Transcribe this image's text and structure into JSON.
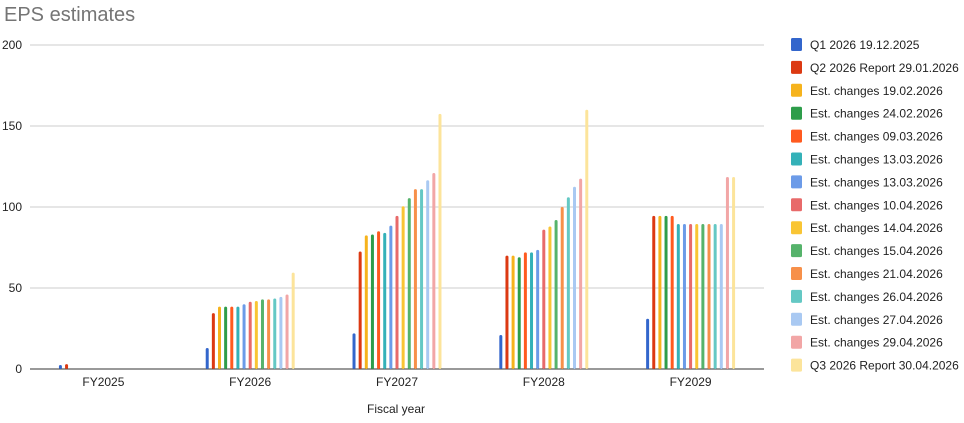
{
  "chart_data": {
    "type": "bar",
    "title": "EPS estimates",
    "xlabel": "Fiscal year",
    "ylabel": "",
    "ylim": [
      0,
      200
    ],
    "yticks": [
      0,
      50,
      100,
      150,
      200
    ],
    "grid": true,
    "legend_position": "right",
    "categories": [
      "FY2025",
      "FY2026",
      "FY2027",
      "FY2028",
      "FY2029"
    ],
    "series": [
      {
        "name": "Q1 2026 19.12.2025",
        "color": "#3366cc",
        "values": [
          2.5,
          13,
          22,
          21,
          31
        ]
      },
      {
        "name": "Q2 2026 Report 29.01.2026",
        "color": "#dc3912",
        "values": [
          3,
          34.5,
          72.5,
          70,
          94.5
        ]
      },
      {
        "name": "Est. changes 19.02.2026",
        "color": "#f6b31c",
        "values": [
          null,
          38.5,
          82.5,
          70,
          94.5
        ]
      },
      {
        "name": "Est. changes 24.02.2026",
        "color": "#2e9d4a",
        "values": [
          null,
          38.5,
          83,
          69,
          94.5
        ]
      },
      {
        "name": "Est. changes 09.03.2026",
        "color": "#ff5a1f",
        "values": [
          null,
          38.5,
          85,
          72,
          94.5
        ]
      },
      {
        "name": "Est. changes 13.03.2026",
        "color": "#34b1b8",
        "values": [
          null,
          38.5,
          84,
          72,
          89.5
        ]
      },
      {
        "name": "Est. changes 13.03.2026",
        "color": "#6c9be8",
        "values": [
          null,
          40,
          88.5,
          73.5,
          89.5
        ]
      },
      {
        "name": "Est. changes 10.04.2026",
        "color": "#e86a6a",
        "values": [
          null,
          41.5,
          94.5,
          86,
          89.5
        ]
      },
      {
        "name": "Est. changes 14.04.2026",
        "color": "#f9c534",
        "values": [
          null,
          42,
          100.5,
          88,
          89.5
        ]
      },
      {
        "name": "Est. changes 15.04.2026",
        "color": "#56b36b",
        "values": [
          null,
          43,
          105.5,
          92,
          89.5
        ]
      },
      {
        "name": "Est. changes 21.04.2026",
        "color": "#f7904a",
        "values": [
          null,
          43,
          111,
          100,
          89.5
        ]
      },
      {
        "name": "Est. changes 26.04.2026",
        "color": "#64c8c4",
        "values": [
          null,
          43.5,
          111,
          106,
          89.5
        ]
      },
      {
        "name": "Est. changes 27.04.2026",
        "color": "#a9c9f2",
        "values": [
          null,
          44.5,
          116.5,
          112.5,
          89.5
        ]
      },
      {
        "name": "Est. changes 29.04.2026",
        "color": "#f2a6a6",
        "values": [
          null,
          46,
          121,
          117.5,
          118.5
        ]
      },
      {
        "name": "Q3 2026 Report 30.04.2026",
        "color": "#fce49b",
        "values": [
          null,
          59.5,
          157.5,
          160,
          118.5
        ]
      }
    ]
  }
}
